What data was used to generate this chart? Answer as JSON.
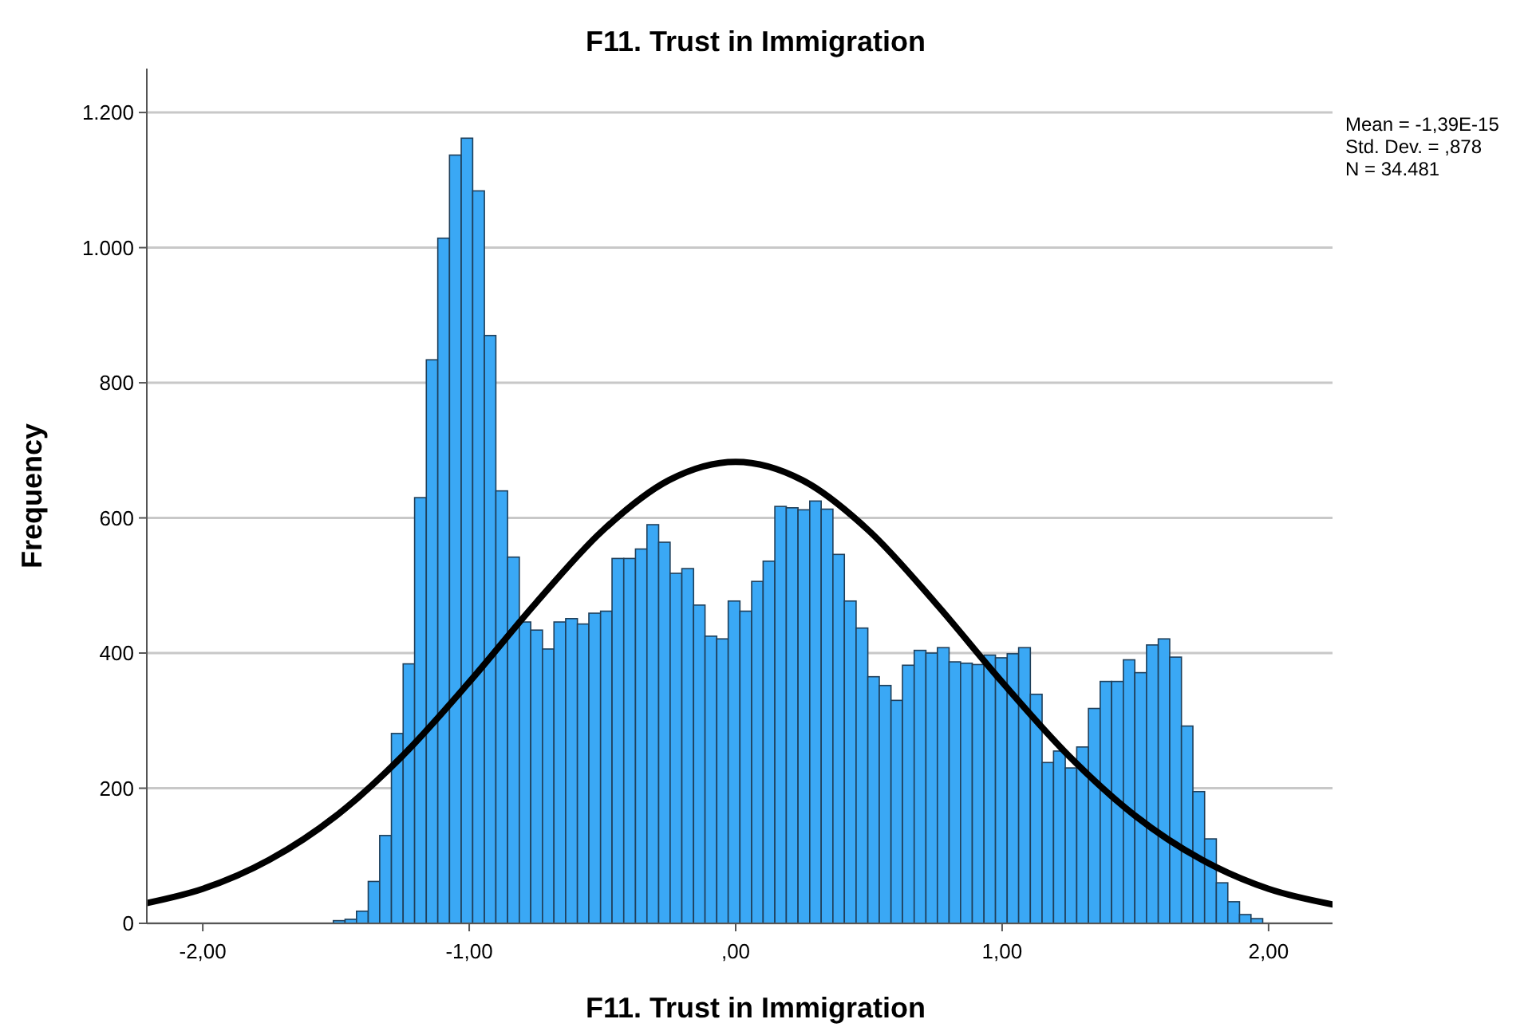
{
  "chart_data": {
    "type": "histogram",
    "title": "F11. Trust in Immigration",
    "xlabel": "F11. Trust in Immigration",
    "ylabel": "Frequency",
    "bins": [
      -1.51,
      -1.466,
      -1.423,
      -1.379,
      -1.336,
      -1.292,
      -1.248,
      -1.205,
      -1.161,
      -1.118,
      -1.074,
      -1.03,
      -0.987,
      -0.943,
      -0.9,
      -0.856,
      -0.812,
      -0.769,
      -0.725,
      -0.682,
      -0.638,
      -0.594,
      -0.551,
      -0.507,
      -0.464,
      -0.42,
      -0.376,
      -0.333,
      -0.289,
      -0.246,
      -0.202,
      -0.158,
      -0.115,
      -0.071,
      -0.028,
      0.016,
      0.06,
      0.103,
      0.147,
      0.19,
      0.234,
      0.278,
      0.321,
      0.365,
      0.408,
      0.452,
      0.496,
      0.539,
      0.583,
      0.626,
      0.67,
      0.714,
      0.757,
      0.801,
      0.844,
      0.888,
      0.932,
      0.975,
      1.019,
      1.062,
      1.106,
      1.15,
      1.193,
      1.237,
      1.28,
      1.324,
      1.368,
      1.411,
      1.455,
      1.498,
      1.542,
      1.586,
      1.629,
      1.673,
      1.716,
      1.76,
      1.804,
      1.847,
      1.891,
      1.934,
      1.978
    ],
    "values": [
      4,
      6,
      18,
      62,
      130,
      281,
      384,
      630,
      834,
      1014,
      1137,
      1162,
      1084,
      870,
      640,
      542,
      446,
      434,
      406,
      446,
      451,
      443,
      459,
      462,
      540,
      540,
      554,
      590,
      564,
      518,
      525,
      471,
      425,
      421,
      477,
      462,
      506,
      536,
      617,
      615,
      612,
      625,
      613,
      546,
      477,
      437,
      365,
      352,
      330,
      382,
      404,
      400,
      408,
      387,
      385,
      383,
      397,
      393,
      399,
      408,
      339,
      238,
      255,
      230,
      261,
      318,
      358,
      358,
      390,
      371,
      412,
      421,
      394,
      292,
      195,
      125,
      60,
      32,
      13,
      7
    ],
    "color": "#3aa8f5",
    "series": [
      {
        "type": "line",
        "color": "#000000",
        "x": [
          -2.21,
          -2.0,
          -1.75,
          -1.5,
          -1.25,
          -1.0,
          -0.75,
          -0.5,
          -0.25,
          0,
          0.25,
          0.5,
          0.75,
          1.0,
          1.25,
          1.5,
          1.75,
          2.0,
          2.24
        ],
        "values": [
          30,
          51,
          94,
          159,
          248,
          357,
          474,
          581,
          656,
          683,
          656,
          581,
          474,
          357,
          248,
          159,
          94,
          51,
          28
        ]
      }
    ],
    "xlim": [
      -2.21,
      2.24
    ],
    "xticks": [
      {
        "value": -2,
        "label": "-2,00"
      },
      {
        "value": -1,
        "label": "-1,00"
      },
      {
        "value": 0,
        "label": ",00"
      },
      {
        "value": 1,
        "label": "1,00"
      },
      {
        "value": 2,
        "label": "2,00"
      }
    ],
    "ylim": [
      0,
      1265
    ],
    "yticks": [
      0,
      200,
      400,
      600,
      800,
      {
        "value": 1000,
        "label": "1.000"
      },
      {
        "value": 1200,
        "label": "1.200"
      }
    ],
    "grid": "y",
    "annotations": [
      "Mean = -1,39E-15",
      "Std. Dev. = ,878",
      "N = 34.481"
    ]
  }
}
